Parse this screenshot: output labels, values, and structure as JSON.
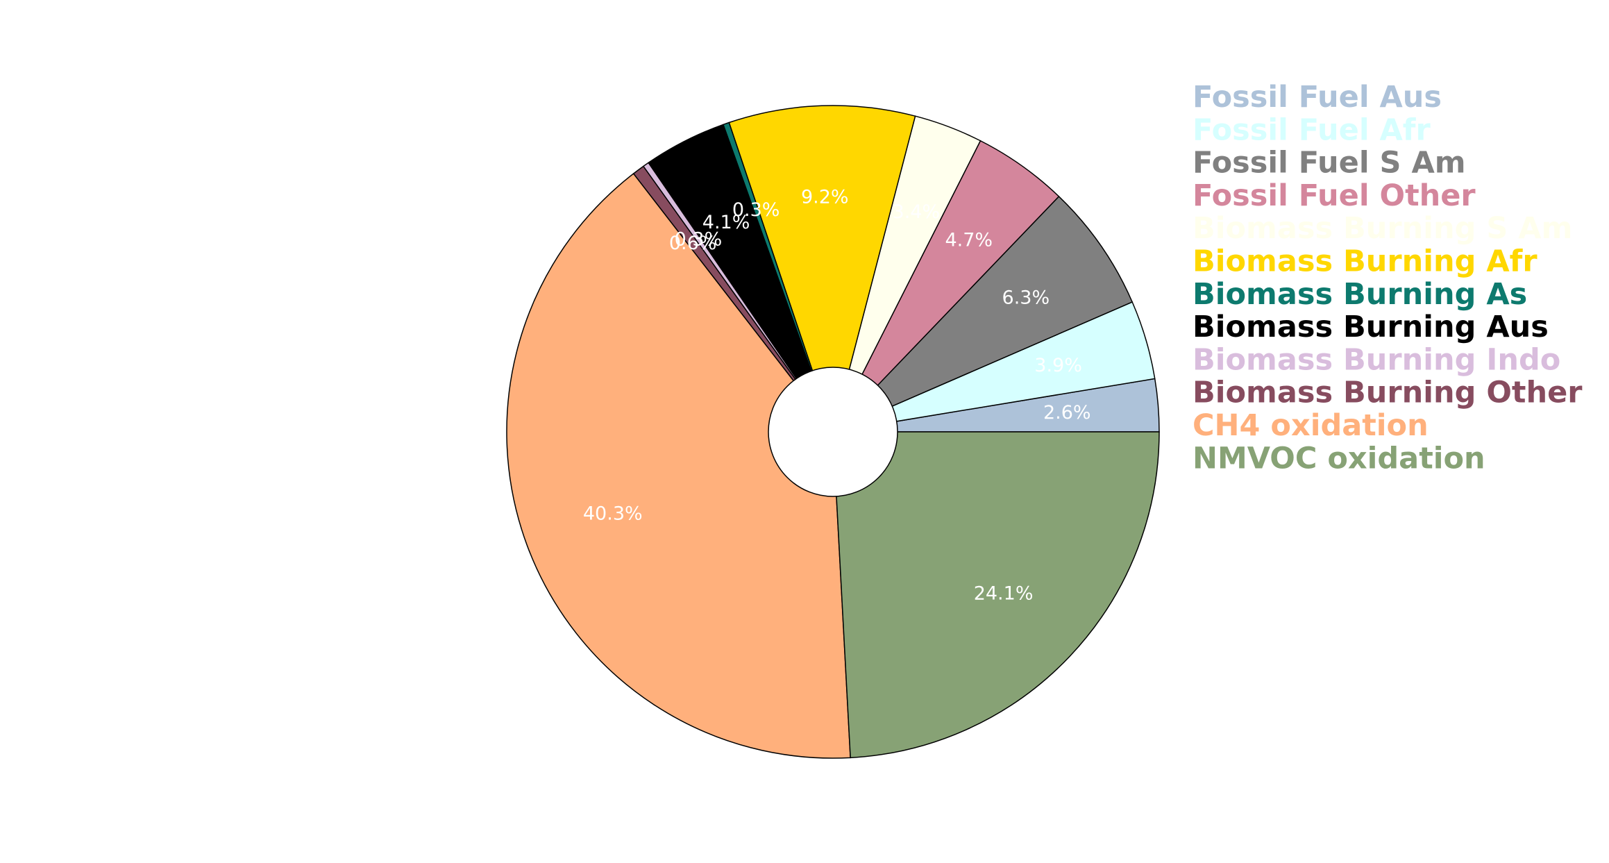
{
  "chart_data": {
    "type": "pie",
    "donut": true,
    "title": "",
    "legend_position": "right",
    "slices": [
      {
        "name": "Fossil Fuel Aus",
        "value": 2.6,
        "label": "2.6%",
        "color": "#adc2d9"
      },
      {
        "name": "Fossil Fuel Afr",
        "value": 3.9,
        "label": "3.9%",
        "color": "#d6ffff"
      },
      {
        "name": "Fossil Fuel S Am",
        "value": 6.3,
        "label": "6.3%",
        "color": "#808080"
      },
      {
        "name": "Fossil Fuel Other",
        "value": 4.7,
        "label": "4.7%",
        "color": "#d4869c"
      },
      {
        "name": "Biomass Burning S Am",
        "value": 3.4,
        "label": "3.4%",
        "color": "#ffffed"
      },
      {
        "name": "Biomass Burning Afr",
        "value": 9.2,
        "label": "9.2%",
        "color": "#ffd700"
      },
      {
        "name": "Biomass Burning As",
        "value": 0.3,
        "label": "0.3%",
        "color": "#0d7a6e"
      },
      {
        "name": "Biomass Burning Aus",
        "value": 4.1,
        "label": "4.1%",
        "color": "#000000"
      },
      {
        "name": "Biomass Burning Indo",
        "value": 0.3,
        "label": "0.3%",
        "color": "#d9bddd"
      },
      {
        "name": "Biomass Burning Other",
        "value": 0.6,
        "label": "0.6%",
        "color": "#874c5f"
      },
      {
        "name": "CH4 oxidation",
        "value": 40.3,
        "label": "40.3%",
        "color": "#ffb07c"
      },
      {
        "name": "NMVOC oxidation",
        "value": 24.1,
        "label": "24.1%",
        "color": "#87a275"
      }
    ]
  }
}
